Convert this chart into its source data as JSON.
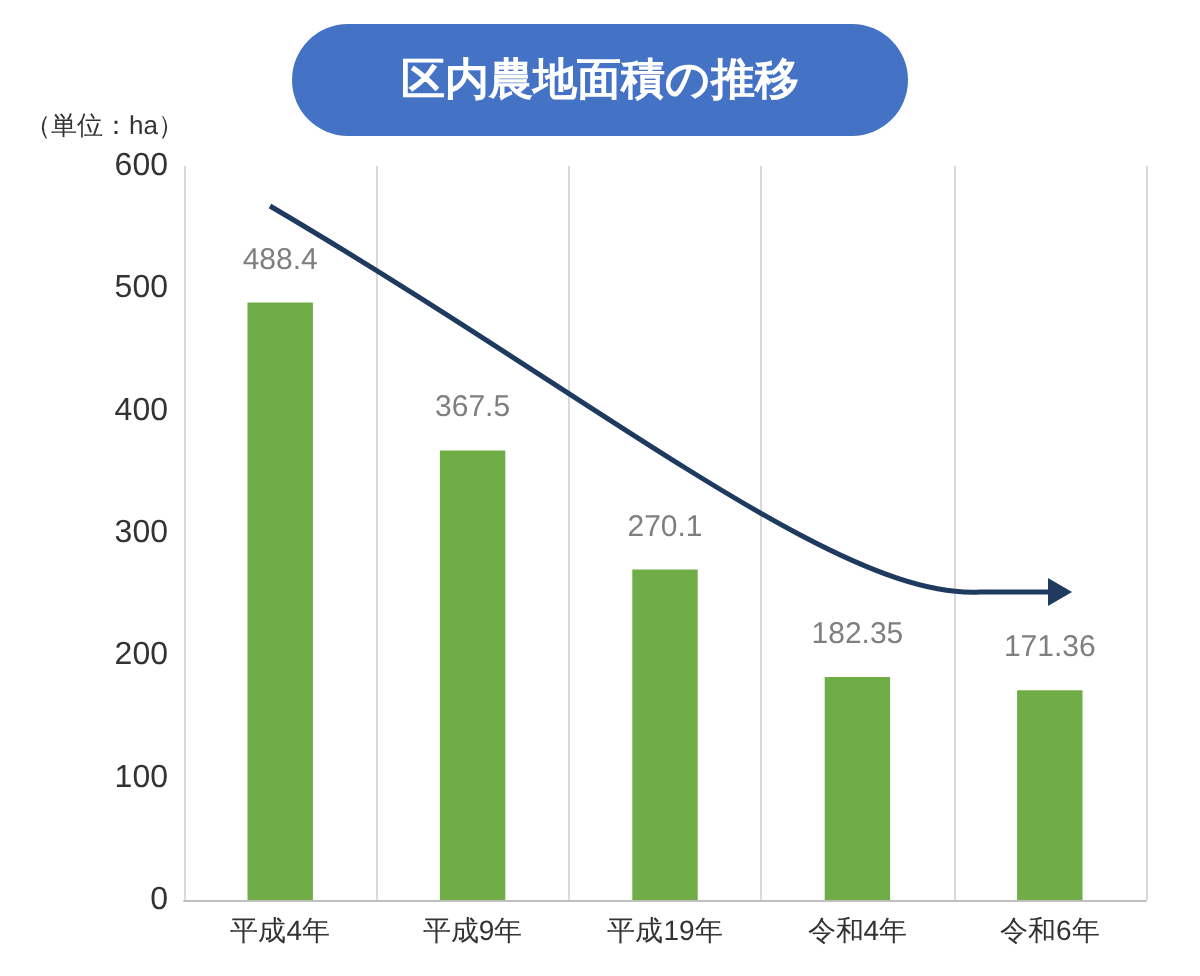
{
  "chart_data": {
    "type": "bar",
    "title": "区内農地面積の推移",
    "ylabel": "（単位：ha）",
    "categories": [
      "平成4年",
      "平成9年",
      "平成19年",
      "令和4年",
      "令和6年"
    ],
    "values": [
      488.4,
      367.5,
      270.1,
      182.35,
      171.36
    ],
    "color": "#70ad47",
    "ylim": [
      0,
      600
    ],
    "yticks": [
      0,
      100,
      200,
      300,
      400,
      500,
      600
    ],
    "grid": "x",
    "data_labels": true
  }
}
